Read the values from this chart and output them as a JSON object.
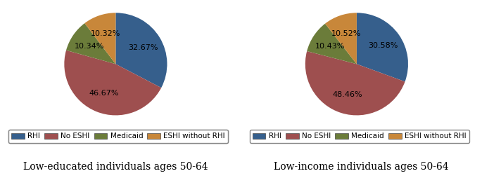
{
  "chart1": {
    "title": "Low-educated individuals ages 50-64",
    "values": [
      32.67,
      46.67,
      10.34,
      10.32
    ],
    "labels": [
      "32.67%",
      "46.67%",
      "10.34%",
      "10.32%"
    ],
    "colors": [
      "#365f8c",
      "#9e4f4f",
      "#6b7c3a",
      "#c8873a"
    ],
    "startangle": 90
  },
  "chart2": {
    "title": "Low-income individuals ages 50-64",
    "values": [
      30.58,
      48.46,
      10.43,
      10.52
    ],
    "labels": [
      "30.58%",
      "48.46%",
      "10.43%",
      "10.52%"
    ],
    "colors": [
      "#365f8c",
      "#9e4f4f",
      "#6b7c3a",
      "#c8873a"
    ],
    "startangle": 90
  },
  "legend_labels": [
    "RHI",
    "No ESHI",
    "Medicaid",
    "ESHI without RHI"
  ],
  "legend_colors": [
    "#365f8c",
    "#9e4f4f",
    "#6b7c3a",
    "#c8873a"
  ],
  "title_fontsize": 10,
  "label_fontsize": 8,
  "legend_fontsize": 7.5
}
